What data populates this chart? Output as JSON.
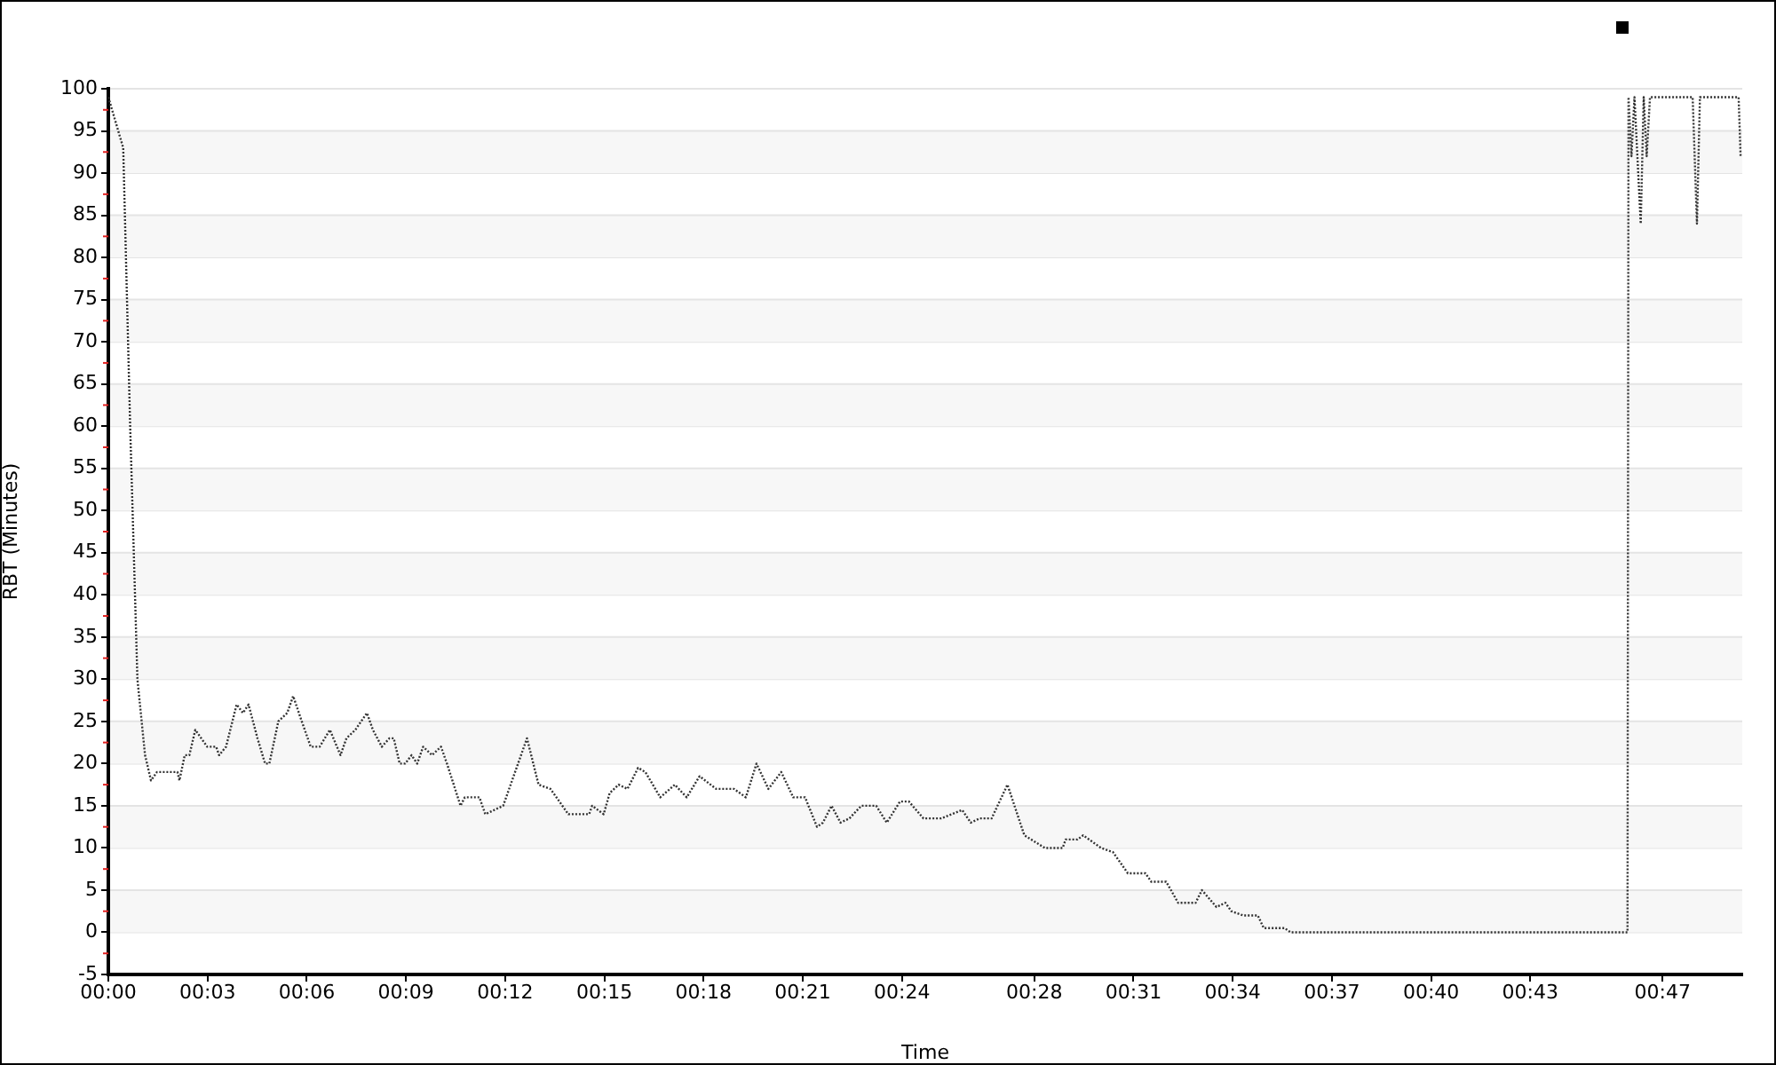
{
  "chart_data": {
    "type": "line",
    "xlabel": "Time",
    "ylabel": "RBT (Minutes)",
    "xlim": [
      0,
      49.41
    ],
    "ylim": [
      -5,
      100
    ],
    "xticks": [
      {
        "value": 0,
        "label": "00:00"
      },
      {
        "value": 3,
        "label": "00:03"
      },
      {
        "value": 6,
        "label": "00:06"
      },
      {
        "value": 9,
        "label": "00:09"
      },
      {
        "value": 12,
        "label": "00:12"
      },
      {
        "value": 15,
        "label": "00:15"
      },
      {
        "value": 18,
        "label": "00:18"
      },
      {
        "value": 21,
        "label": "00:21"
      },
      {
        "value": 24,
        "label": "00:24"
      },
      {
        "value": 28,
        "label": "00:28"
      },
      {
        "value": 31,
        "label": "00:31"
      },
      {
        "value": 34,
        "label": "00:34"
      },
      {
        "value": 37,
        "label": "00:37"
      },
      {
        "value": 40,
        "label": "00:40"
      },
      {
        "value": 43,
        "label": "00:43"
      },
      {
        "value": 47,
        "label": "00:47"
      }
    ],
    "yticks": [
      -5,
      0,
      5,
      10,
      15,
      20,
      25,
      30,
      35,
      40,
      45,
      50,
      55,
      60,
      65,
      70,
      75,
      80,
      85,
      90,
      95,
      100
    ],
    "grid": "y",
    "legend": false,
    "marker": "none",
    "line_style": "dotted",
    "series": [
      {
        "color": "#333333",
        "x": [
          0,
          0.45,
          0.66,
          0.88,
          1.11,
          1.29,
          1.47,
          2.09,
          2.15,
          2.31,
          2.45,
          2.63,
          2.81,
          2.99,
          3.26,
          3.35,
          3.56,
          3.88,
          4.07,
          4.24,
          4.51,
          4.74,
          4.87,
          5.14,
          5.41,
          5.59,
          5.85,
          6.12,
          6.39,
          6.7,
          7.02,
          7.2,
          7.47,
          7.82,
          8.0,
          8.27,
          8.5,
          8.63,
          8.81,
          8.98,
          9.17,
          9.34,
          9.52,
          9.79,
          10.06,
          10.24,
          10.65,
          10.78,
          11.22,
          11.4,
          11.94,
          12.66,
          13.01,
          13.37,
          13.91,
          14.54,
          14.63,
          14.98,
          15.16,
          15.43,
          15.7,
          16.02,
          16.24,
          16.69,
          17.13,
          17.49,
          17.88,
          18.38,
          18.92,
          19.28,
          19.6,
          19.96,
          20.35,
          20.71,
          21.07,
          21.43,
          21.61,
          21.87,
          22.14,
          22.41,
          22.77,
          23.22,
          23.54,
          23.94,
          24.21,
          24.65,
          25.19,
          25.82,
          26.08,
          26.35,
          26.71,
          27.19,
          27.7,
          28.32,
          28.86,
          28.95,
          29.31,
          29.48,
          30.02,
          30.38,
          30.83,
          31.36,
          31.54,
          31.99,
          32.35,
          32.88,
          33.07,
          33.51,
          33.78,
          33.96,
          34.32,
          34.76,
          34.94,
          35.57,
          35.75,
          45.94,
          45.97,
          46.06,
          46.15,
          46.34,
          46.43,
          46.52,
          46.62,
          47.91,
          48.04,
          48.13,
          49.3,
          49.36
        ],
        "values": [
          99,
          93,
          60,
          30,
          21,
          18,
          19,
          19,
          18,
          21,
          21,
          24,
          23,
          22,
          22,
          21,
          22,
          27,
          26,
          27,
          23,
          20,
          20,
          25,
          26,
          28,
          25,
          22,
          22,
          24,
          21,
          23,
          24,
          26,
          24,
          22,
          23,
          23,
          20,
          20,
          21,
          20,
          22,
          21,
          22,
          20,
          15,
          16,
          16,
          14,
          15,
          23,
          17.5,
          17,
          14,
          14,
          15,
          14,
          16.5,
          17.5,
          17,
          19.5,
          19,
          16,
          17.5,
          16,
          18.5,
          17,
          17,
          16,
          20,
          17,
          19,
          16,
          16,
          12.5,
          13,
          15,
          13,
          13.5,
          15,
          15,
          13,
          15.5,
          15.5,
          13.5,
          13.5,
          14.5,
          13,
          13.5,
          13.5,
          17.5,
          11.5,
          10,
          10,
          11,
          11,
          11.5,
          10,
          9.5,
          7,
          7,
          6,
          6,
          3.5,
          3.5,
          5,
          3,
          3.5,
          2.5,
          2,
          2,
          0.5,
          0.5,
          0,
          0,
          99,
          92,
          99,
          84,
          99,
          92,
          99,
          99,
          84,
          99,
          99,
          92
        ]
      }
    ]
  }
}
